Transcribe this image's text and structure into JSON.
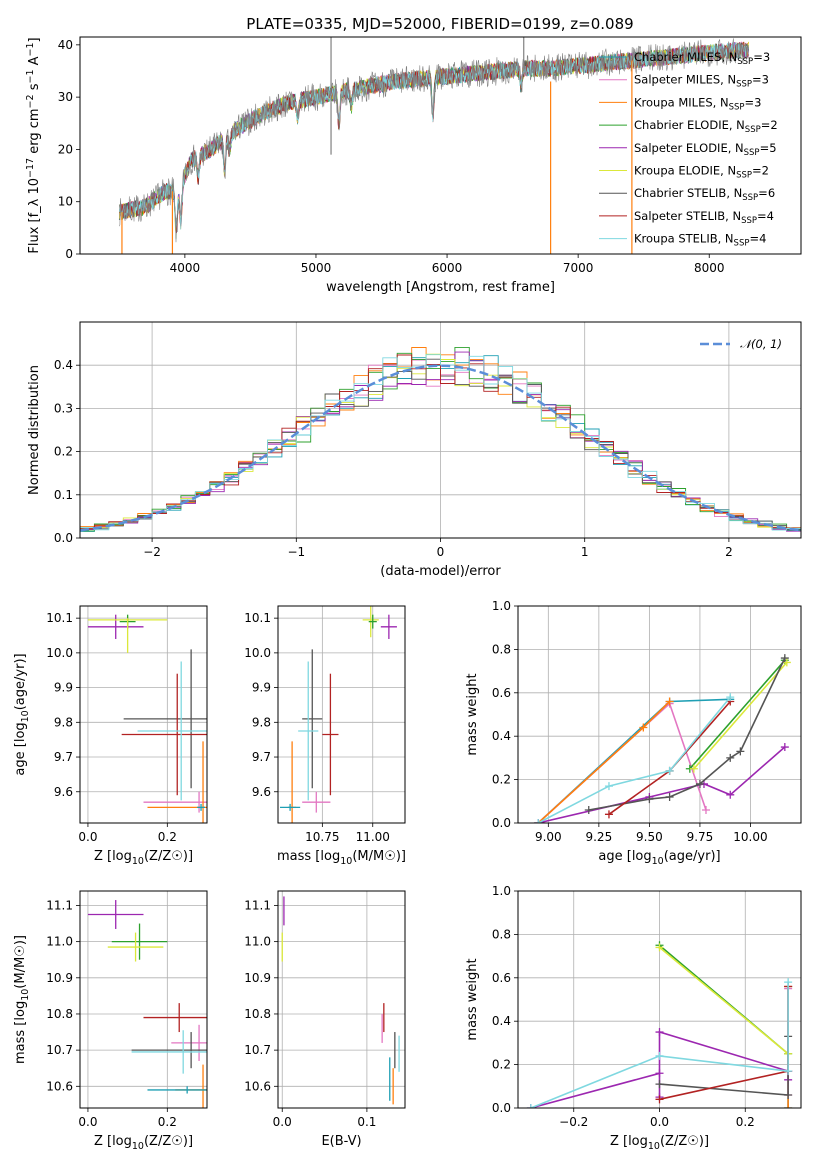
{
  "figure_title": "PLATE=0335, MJD=52000, FIBERID=0199, z=0.089",
  "colors": {
    "Chabrier MILES": "#1f9fb4",
    "Salpeter MILES": "#e377c2",
    "Kroupa MILES": "#ff7f0e",
    "Chabrier ELODIE": "#2ca02c",
    "Salpeter ELODIE": "#9c27b0",
    "Kroupa ELODIE": "#dbe83a",
    "Chabrier STELIB": "#555555",
    "Salpeter STELIB": "#b22222",
    "Kroupa STELIB": "#7fd8e0",
    "normal": "#5b8ed8",
    "grid": "#b0b0b0",
    "data": "#808080"
  },
  "chart_data": [
    {
      "id": "spectrum",
      "type": "line",
      "title": "PLATE=0335, MJD=52000, FIBERID=0199, z=0.089",
      "xlabel": "wavelength [Angstrom, rest frame]",
      "ylabel": "Flux [f_λ 10^-17 erg cm^-2 s^-1 A^-1]",
      "xlim": [
        3200,
        8700
      ],
      "ylim": [
        0,
        41.5
      ],
      "xticks": [
        4000,
        5000,
        6000,
        7000,
        8000
      ],
      "yticks": [
        0,
        10,
        20,
        30,
        40
      ],
      "grid": false,
      "legend_position": "top-right",
      "legend": [
        {
          "name": "Chabrier MILES",
          "nssp": "3"
        },
        {
          "name": "Salpeter MILES",
          "nssp": "3"
        },
        {
          "name": "Kroupa MILES",
          "nssp": "3"
        },
        {
          "name": "Chabrier ELODIE",
          "nssp": "2"
        },
        {
          "name": "Salpeter ELODIE",
          "nssp": "5"
        },
        {
          "name": "Kroupa ELODIE",
          "nssp": "2"
        },
        {
          "name": "Chabrier STELIB",
          "nssp": "6"
        },
        {
          "name": "Salpeter STELIB",
          "nssp": "4"
        },
        {
          "name": "Kroupa STELIB",
          "nssp": "4"
        }
      ],
      "continuum": {
        "x": [
          3500,
          3700,
          3850,
          3950,
          4050,
          4200,
          4400,
          4600,
          4800,
          5000,
          5200,
          5400,
          5600,
          5800,
          6000,
          6200,
          6400,
          6600,
          6800,
          7000,
          7200,
          7400,
          7600,
          7800,
          8000,
          8200,
          8300
        ],
        "y": [
          8,
          9,
          12,
          12,
          18,
          20,
          24,
          27,
          29,
          30,
          31,
          32,
          33,
          33.5,
          34,
          34.5,
          35,
          35.5,
          35.5,
          36,
          36.5,
          37,
          37.5,
          38,
          38.5,
          39,
          39
        ]
      },
      "absorption_lines": [
        {
          "x": 3934,
          "depth": 8
        },
        {
          "x": 3969,
          "depth": 7
        },
        {
          "x": 4102,
          "depth": 4
        },
        {
          "x": 4304,
          "depth": 6
        },
        {
          "x": 4340,
          "depth": 3
        },
        {
          "x": 4861,
          "depth": 3
        },
        {
          "x": 5175,
          "depth": 6
        },
        {
          "x": 5270,
          "depth": 3
        },
        {
          "x": 5892,
          "depth": 7
        },
        {
          "x": 6563,
          "depth": 3
        }
      ],
      "spikes": [
        {
          "x": 3520,
          "y_from": 8,
          "y_to": 0
        },
        {
          "x": 3905,
          "y_from": 12,
          "y_to": 0
        },
        {
          "x": 6790,
          "y_from": 33,
          "y_to": 0
        },
        {
          "x": 7410,
          "y_from": 37,
          "y_to": 0
        },
        {
          "x": 5115,
          "y_from": 29,
          "y_to": 42
        },
        {
          "x": 5115,
          "y_from": 29,
          "y_to": 19
        },
        {
          "x": 6585,
          "y_from": 35,
          "y_to": 42
        }
      ]
    },
    {
      "id": "residuals",
      "type": "histogram",
      "xlabel": "(data-model)/error",
      "ylabel": "Normed distribution",
      "xlim": [
        -2.5,
        2.5
      ],
      "ylim": [
        0,
        0.5
      ],
      "xticks": [
        -2,
        -1,
        0,
        1,
        2
      ],
      "yticks": [
        0.0,
        0.1,
        0.2,
        0.3,
        0.4
      ],
      "grid": true,
      "bin_width": 0.1,
      "legend": [
        {
          "name": "𝒩(0, 1)",
          "style": "dashed"
        }
      ],
      "legend_position": "top-right",
      "normal": {
        "mean": 0,
        "sigma": 1
      }
    },
    {
      "id": "age-vs-Z",
      "type": "errorbar",
      "xlabel": "Z [log10(Z/Z☉)]",
      "ylabel": "age [log10(age/yr)]",
      "xlim": [
        -0.02,
        0.3
      ],
      "ylim": [
        9.51,
        10.135
      ],
      "xticks": [
        0.0,
        0.2
      ],
      "yticks": [
        9.6,
        9.7,
        9.8,
        9.9,
        10.0,
        10.1
      ],
      "grid": true,
      "points": [
        {
          "series": "Salpeter ELODIE",
          "x": 0.07,
          "xerr": 0.07,
          "y": 10.075,
          "yerr": 0.035
        },
        {
          "series": "Kroupa ELODIE",
          "x": 0.1,
          "xerr": 0.1,
          "y": 10.095,
          "yerr": 0.01
        },
        {
          "series": "Chabrier ELODIE",
          "x": 0.1,
          "xerr": 0.02,
          "y": 10.09,
          "yerr": 0.02
        },
        {
          "series": "Kroupa ELODIE",
          "x": 0.1,
          "xerr": 0.0,
          "y": 10.05,
          "yerr": 0.05
        },
        {
          "series": "Chabrier STELIB",
          "x": 0.26,
          "xerr": 0.17,
          "y": 9.81,
          "yerr": 0.2
        },
        {
          "series": "Salpeter STELIB",
          "x": 0.225,
          "xerr": 0.14,
          "y": 9.765,
          "yerr": 0.175
        },
        {
          "series": "Kroupa STELIB",
          "x": 0.235,
          "xerr": 0.11,
          "y": 9.775,
          "yerr": 0.2
        },
        {
          "series": "Salpeter MILES",
          "x": 0.28,
          "xerr": 0.14,
          "y": 9.57,
          "yerr": 0.03
        },
        {
          "series": "Kroupa MILES",
          "x": 0.29,
          "xerr": 0.14,
          "y": 9.555,
          "yerr": 0.19
        },
        {
          "series": "Chabrier MILES",
          "x": 0.285,
          "xerr": 0.01,
          "y": 9.555,
          "yerr": 0.01
        }
      ]
    },
    {
      "id": "age-vs-mass",
      "type": "errorbar",
      "xlabel": "mass [log10(M/M☉)]",
      "ylabel": "",
      "xlim": [
        10.53,
        11.16
      ],
      "ylim": [
        9.51,
        10.135
      ],
      "xticks": [
        10.75,
        11.0
      ],
      "yticks": [
        9.6,
        9.7,
        9.8,
        9.9,
        10.0,
        10.1
      ],
      "grid": true,
      "points": [
        {
          "series": "Salpeter ELODIE",
          "x": 11.08,
          "xerr": 0.04,
          "y": 10.075,
          "yerr": 0.035
        },
        {
          "series": "Kroupa ELODIE",
          "x": 10.99,
          "xerr": 0.04,
          "y": 10.095,
          "yerr": 0.05
        },
        {
          "series": "Chabrier ELODIE",
          "x": 11.0,
          "xerr": 0.02,
          "y": 10.09,
          "yerr": 0.02
        },
        {
          "series": "Chabrier STELIB",
          "x": 10.7,
          "xerr": 0.05,
          "y": 9.81,
          "yerr": 0.2
        },
        {
          "series": "Salpeter STELIB",
          "x": 10.79,
          "xerr": 0.04,
          "y": 9.765,
          "yerr": 0.175
        },
        {
          "series": "Kroupa STELIB",
          "x": 10.68,
          "xerr": 0.05,
          "y": 9.775,
          "yerr": 0.2
        },
        {
          "series": "Salpeter MILES",
          "x": 10.72,
          "xerr": 0.07,
          "y": 9.57,
          "yerr": 0.03
        },
        {
          "series": "Kroupa MILES",
          "x": 10.6,
          "xerr": 0.02,
          "y": 9.555,
          "yerr": 0.19
        },
        {
          "series": "Chabrier MILES",
          "x": 10.59,
          "xerr": 0.05,
          "y": 9.555,
          "yerr": 0.01
        }
      ]
    },
    {
      "id": "weight-vs-age",
      "type": "line",
      "xlabel": "age [log10(age/yr)]",
      "ylabel": "mass weight",
      "xlim": [
        8.85,
        10.25
      ],
      "ylim": [
        0,
        1.0
      ],
      "xticks": [
        9.0,
        9.25,
        9.5,
        9.75,
        10.0
      ],
      "yticks": [
        0.0,
        0.2,
        0.4,
        0.6,
        0.8,
        1.0
      ],
      "grid": true,
      "series": [
        {
          "name": "Chabrier MILES",
          "x": [
            8.95,
            9.6,
            9.9
          ],
          "y": [
            0.0,
            0.56,
            0.57
          ]
        },
        {
          "name": "Salpeter MILES",
          "x": [
            8.95,
            9.6,
            9.78
          ],
          "y": [
            0.0,
            0.55,
            0.06
          ]
        },
        {
          "name": "Kroupa MILES",
          "x": [
            8.95,
            9.47,
            9.6
          ],
          "y": [
            0.0,
            0.44,
            0.56
          ]
        },
        {
          "name": "Chabrier ELODIE",
          "x": [
            9.7,
            10.17
          ],
          "y": [
            0.25,
            0.75
          ]
        },
        {
          "name": "Salpeter ELODIE",
          "x": [
            8.95,
            9.5,
            9.77,
            9.9,
            10.17
          ],
          "y": [
            0.0,
            0.12,
            0.18,
            0.13,
            0.35
          ]
        },
        {
          "name": "Kroupa ELODIE",
          "x": [
            9.72,
            10.18
          ],
          "y": [
            0.25,
            0.74
          ]
        },
        {
          "name": "Chabrier STELIB",
          "x": [
            9.2,
            9.5,
            9.6,
            9.75,
            9.9,
            9.95,
            10.17
          ],
          "y": [
            0.06,
            0.11,
            0.12,
            0.18,
            0.3,
            0.33,
            0.76
          ]
        },
        {
          "name": "Salpeter STELIB",
          "x": [
            9.3,
            9.6,
            9.9
          ],
          "y": [
            0.04,
            0.24,
            0.56
          ]
        },
        {
          "name": "Kroupa STELIB",
          "x": [
            8.95,
            9.3,
            9.6,
            9.9
          ],
          "y": [
            0.0,
            0.17,
            0.24,
            0.58
          ]
        }
      ]
    },
    {
      "id": "mass-vs-Z",
      "type": "errorbar",
      "xlabel": "Z [log10(Z/Z☉)]",
      "ylabel": "mass [log10(M/M☉)]",
      "xlim": [
        -0.02,
        0.3
      ],
      "ylim": [
        10.54,
        11.14
      ],
      "xticks": [
        0.0,
        0.2
      ],
      "yticks": [
        10.6,
        10.7,
        10.8,
        10.9,
        11.0,
        11.1
      ],
      "grid": true,
      "points": [
        {
          "series": "Salpeter ELODIE",
          "x": 0.07,
          "xerr": 0.07,
          "y": 11.075,
          "yerr": 0.04
        },
        {
          "series": "Chabrier ELODIE",
          "x": 0.13,
          "xerr": 0.07,
          "y": 11.0,
          "yerr": 0.05
        },
        {
          "series": "Kroupa ELODIE",
          "x": 0.12,
          "xerr": 0.07,
          "y": 10.985,
          "yerr": 0.04
        },
        {
          "series": "Salpeter STELIB",
          "x": 0.23,
          "xerr": 0.09,
          "y": 10.79,
          "yerr": 0.04
        },
        {
          "series": "Salpeter MILES",
          "x": 0.28,
          "xerr": 0.07,
          "y": 10.72,
          "yerr": 0.05
        },
        {
          "series": "Chabrier STELIB",
          "x": 0.26,
          "xerr": 0.15,
          "y": 10.7,
          "yerr": 0.05
        },
        {
          "series": "Kroupa STELIB",
          "x": 0.24,
          "xerr": 0.13,
          "y": 10.695,
          "yerr": 0.06
        },
        {
          "series": "Kroupa MILES",
          "x": 0.29,
          "xerr": 0.07,
          "y": 10.59,
          "yerr": 0.07
        },
        {
          "series": "Chabrier MILES",
          "x": 0.25,
          "xerr": 0.1,
          "y": 10.59,
          "yerr": 0.01
        }
      ]
    },
    {
      "id": "mass-vs-ebv",
      "type": "errorbar",
      "xlabel": "E(B-V)",
      "ylabel": "",
      "xlim": [
        -0.005,
        0.145
      ],
      "ylim": [
        10.54,
        11.14
      ],
      "xticks": [
        0.0,
        0.1
      ],
      "yticks": [
        10.6,
        10.7,
        10.8,
        10.9,
        11.0,
        11.1
      ],
      "grid": true,
      "points": [
        {
          "series": "Salpeter ELODIE",
          "x": 0.002,
          "xerr": 0.0,
          "y": 11.085,
          "yerr": 0.04
        },
        {
          "series": "Kroupa ELODIE",
          "x": 0.0,
          "xerr": 0.0,
          "y": 10.985,
          "yerr": 0.04
        },
        {
          "series": "Salpeter STELIB",
          "x": 0.12,
          "xerr": 0.0,
          "y": 10.79,
          "yerr": 0.04
        },
        {
          "series": "Salpeter MILES",
          "x": 0.118,
          "xerr": 0.0,
          "y": 10.76,
          "yerr": 0.04
        },
        {
          "series": "Chabrier STELIB",
          "x": 0.133,
          "xerr": 0.0,
          "y": 10.7,
          "yerr": 0.05
        },
        {
          "series": "Kroupa STELIB",
          "x": 0.138,
          "xerr": 0.0,
          "y": 10.69,
          "yerr": 0.05
        },
        {
          "series": "Chabrier MILES",
          "x": 0.127,
          "xerr": 0.0,
          "y": 10.62,
          "yerr": 0.06
        },
        {
          "series": "Kroupa MILES",
          "x": 0.131,
          "xerr": 0.0,
          "y": 10.6,
          "yerr": 0.05
        }
      ]
    },
    {
      "id": "weight-vs-Z",
      "type": "line",
      "xlabel": "Z [log10(Z/Z☉)]",
      "ylabel": "mass weight",
      "xlim": [
        -0.33,
        0.33
      ],
      "ylim": [
        0,
        1.0
      ],
      "xticks": [
        -0.2,
        0.0,
        0.2
      ],
      "yticks": [
        0.0,
        0.2,
        0.4,
        0.6,
        0.8,
        1.0
      ],
      "grid": true,
      "series": [
        {
          "name": "Chabrier MILES",
          "x": [
            0.3,
            0.3
          ],
          "y": [
            0.0,
            0.56
          ]
        },
        {
          "name": "Kroupa MILES",
          "x": [
            0.3,
            0.3
          ],
          "y": [
            0.0,
            0.56
          ]
        },
        {
          "name": "Salpeter MILES",
          "x": [
            0.3,
            0.3
          ],
          "y": [
            0.06,
            0.55
          ]
        },
        {
          "name": "Chabrier ELODIE",
          "x": [
            0.0,
            0.3
          ],
          "y": [
            0.75,
            0.25
          ]
        },
        {
          "name": "Kroupa ELODIE",
          "x": [
            0.0,
            0.3
          ],
          "y": [
            0.74,
            0.25
          ]
        },
        {
          "name": "Salpeter ELODIE",
          "x": [
            0.0,
            0.0,
            0.3,
            0.3
          ],
          "y": [
            0.05,
            0.35,
            0.17,
            0.13
          ]
        },
        {
          "name": "Salpeter ELODIE",
          "x": [
            -0.3,
            0.0
          ],
          "y": [
            0.0,
            0.16
          ]
        },
        {
          "name": "Chabrier STELIB",
          "x": [
            0.0,
            0.3,
            0.3
          ],
          "y": [
            0.11,
            0.06,
            0.33
          ]
        },
        {
          "name": "Salpeter STELIB",
          "x": [
            0.0,
            0.3,
            0.3
          ],
          "y": [
            0.04,
            0.17,
            0.56
          ]
        },
        {
          "name": "Kroupa STELIB",
          "x": [
            -0.3,
            0.0,
            0.3,
            0.3
          ],
          "y": [
            0.0,
            0.24,
            0.17,
            0.58
          ]
        }
      ]
    }
  ]
}
